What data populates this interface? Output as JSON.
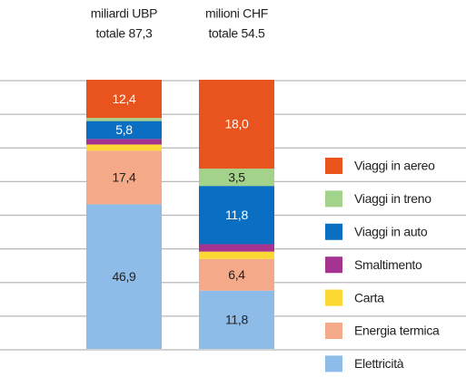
{
  "chart_data": {
    "type": "bar",
    "stacked": true,
    "categories": [
      "miliardi UBP",
      "milioni CHF"
    ],
    "totals": [
      {
        "value": 87.3,
        "label": "totale 87,3"
      },
      {
        "value": 54.5,
        "label": "totale 54.5"
      }
    ],
    "grid": true,
    "series": [
      {
        "name": "Elettricità",
        "color": "#8dbce8",
        "label_color": "#222222",
        "values": [
          46.9,
          11.8
        ],
        "value_labels": [
          "46,9",
          "11,8"
        ]
      },
      {
        "name": "Energia termica",
        "color": "#f4a989",
        "label_color": "#222222",
        "values": [
          17.4,
          6.4
        ],
        "value_labels": [
          "17,4",
          "6,4"
        ]
      },
      {
        "name": "Carta",
        "color": "#fbd834",
        "label_color": "#222222",
        "values": [
          2.0,
          1.5
        ]
      },
      {
        "name": "Smaltimento",
        "color": "#a4348f",
        "label_color": "#ffffff",
        "values": [
          1.8,
          1.5
        ]
      },
      {
        "name": "Viaggi in auto",
        "color": "#0a6fc2",
        "label_color": "#ffffff",
        "values": [
          5.8,
          11.8
        ],
        "value_labels": [
          "5,8",
          "11,8"
        ]
      },
      {
        "name": "Viaggi in treno",
        "color": "#a3d38a",
        "label_color": "#222222",
        "values": [
          1.0,
          3.5
        ],
        "value_labels": [
          null,
          "3,5"
        ]
      },
      {
        "name": "Viaggi in aereo",
        "color": "#e8531e",
        "label_color": "#ffffff",
        "values": [
          12.4,
          18.0
        ],
        "value_labels": [
          "12,4",
          "18,0"
        ]
      }
    ]
  }
}
